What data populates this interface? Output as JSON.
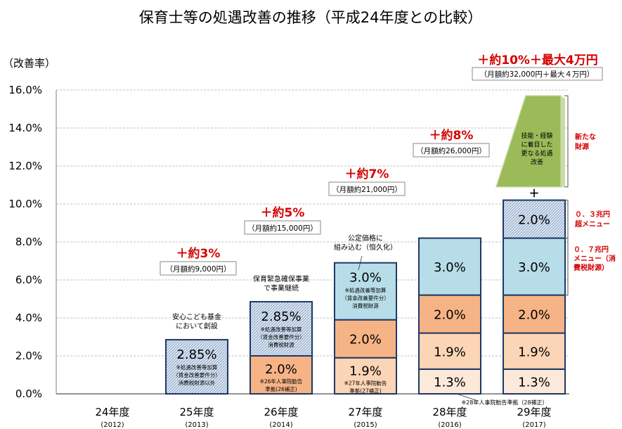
{
  "chart_data": {
    "type": "bar",
    "title": "保育士等の処遇改善の推移（平成24年度との比較）",
    "ylabel": "（改善率）",
    "ylim": [
      0,
      16
    ],
    "y_ticks": [
      "0.0%",
      "2.0%",
      "4.0%",
      "6.0%",
      "8.0%",
      "10.0%",
      "12.0%",
      "14.0%",
      "16.0%"
    ],
    "grid": true,
    "categories": [
      {
        "name": "24年度",
        "sub": "(2012)"
      },
      {
        "name": "25年度",
        "sub": "(2013)"
      },
      {
        "name": "26年度",
        "sub": "(2014)"
      },
      {
        "name": "27年度",
        "sub": "(2015)"
      },
      {
        "name": "28年度",
        "sub": "(2016)"
      },
      {
        "name": "29年度",
        "sub": "(2017)"
      }
    ],
    "segments": [
      {
        "cat": 1,
        "start": 0,
        "value": 2.85,
        "label": "2.85%",
        "style": "hatch",
        "note": [
          "※処遇改善等加算",
          "（賃金改善要件分）",
          "消費税財源以外"
        ]
      },
      {
        "cat": 2,
        "start": 0,
        "value": 2.0,
        "label": "2.0%",
        "style": "orange",
        "note": [
          "※26年人事院勧告",
          "準拠(26補正)"
        ]
      },
      {
        "cat": 2,
        "start": 2.0,
        "value": 2.85,
        "label": "2.85%",
        "style": "hatch",
        "note": [
          "※処遇改善等加算",
          "（賃金改善要件分）",
          "消費税財源"
        ]
      },
      {
        "cat": 3,
        "start": 0,
        "value": 1.9,
        "label": "1.9%",
        "style": "lightorange",
        "note": [
          "※27年人事院勧告",
          "準拠(27補正)"
        ]
      },
      {
        "cat": 3,
        "start": 1.9,
        "value": 2.0,
        "label": "2.0%",
        "style": "orange",
        "note": []
      },
      {
        "cat": 3,
        "start": 3.9,
        "value": 3.0,
        "label": "3.0%",
        "style": "blue",
        "note": [
          "※処遇改善等加算",
          "（賃金改善要件分）",
          "消費税財源"
        ]
      },
      {
        "cat": 4,
        "start": 0,
        "value": 1.3,
        "label": "1.3%",
        "style": "palest",
        "note": []
      },
      {
        "cat": 4,
        "start": 1.3,
        "value": 1.9,
        "label": "1.9%",
        "style": "lightorange",
        "note": []
      },
      {
        "cat": 4,
        "start": 3.2,
        "value": 2.0,
        "label": "2.0%",
        "style": "orange",
        "note": []
      },
      {
        "cat": 4,
        "start": 5.2,
        "value": 3.0,
        "label": "3.0%",
        "style": "blue",
        "note": []
      },
      {
        "cat": 5,
        "start": 0,
        "value": 1.3,
        "label": "1.3%",
        "style": "palest",
        "note": []
      },
      {
        "cat": 5,
        "start": 1.3,
        "value": 1.9,
        "label": "1.9%",
        "style": "lightorange",
        "note": []
      },
      {
        "cat": 5,
        "start": 3.2,
        "value": 2.0,
        "label": "2.0%",
        "style": "orange",
        "note": []
      },
      {
        "cat": 5,
        "start": 5.2,
        "value": 3.0,
        "label": "3.0%",
        "style": "blue",
        "note": []
      },
      {
        "cat": 5,
        "start": 8.2,
        "value": 2.0,
        "label": "2.0%",
        "style": "hatch",
        "note": []
      }
    ],
    "extra_bar": {
      "cat": 5,
      "start": 10.9,
      "end": 15.7,
      "label": [
        "技能・経験",
        "に着目した",
        "更なる処遇",
        "改善"
      ]
    },
    "totals": [
      {
        "cat": 1,
        "headline": "＋約3%",
        "sub": "（月額約9,000円）"
      },
      {
        "cat": 2,
        "headline": "＋約5%",
        "sub": "（月額約15,000円）"
      },
      {
        "cat": 3,
        "headline": "＋約7%",
        "sub": "（月額約21,000円）"
      },
      {
        "cat": 4,
        "headline": "＋約8%",
        "sub": "（月額約26,000円）"
      },
      {
        "cat": 5,
        "headline": "＋約10%＋最大4万円",
        "sub": "（月額約32,000円＋最大４万円）"
      }
    ],
    "annotations": {
      "cat1": [
        "安心こども基金",
        "において創設"
      ],
      "cat2": [
        "保育緊急確保事業",
        "で事業継続"
      ],
      "cat3": [
        "公定価格に",
        "組み込む（恒久化）"
      ],
      "cat4_note": "※28年人事院勧告準拠（28補正）",
      "plus": "＋",
      "right_new_funding": [
        "新たな",
        "財源"
      ],
      "right_03": [
        "０．３兆円",
        "超メニュー"
      ],
      "right_07": [
        "０．７兆円",
        "メニュー（消",
        "費税財源）"
      ]
    },
    "colors": {
      "blue": "#b7dde8",
      "orange": "#f6b486",
      "lightorange": "#fbd5b5",
      "palest": "#fde9d9",
      "hatch_bg": "#dbe5f1",
      "border": "#1f3864",
      "green": "#9bbb59",
      "green_edge": "#c2d69b",
      "red": "#d50000",
      "grid": "#c0c0c0"
    }
  }
}
